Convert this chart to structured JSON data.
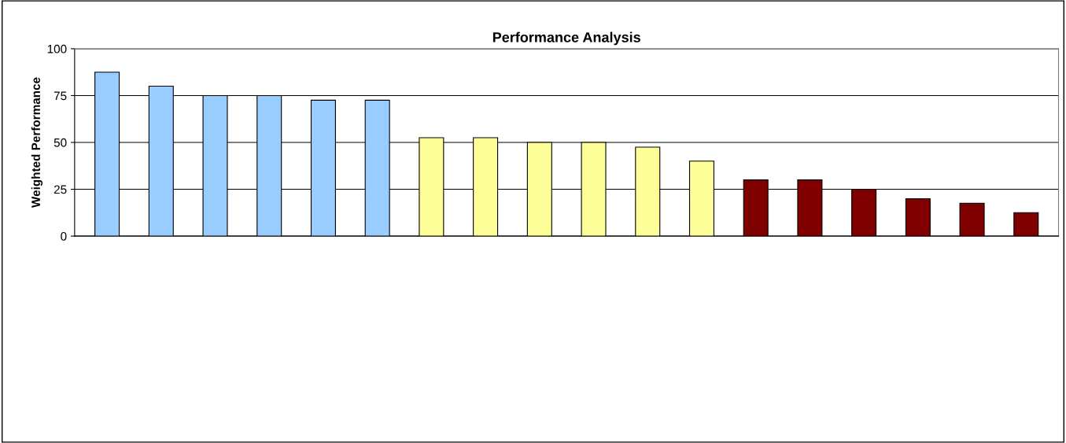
{
  "chart_data": {
    "type": "bar",
    "title": "Performance Analysis",
    "ylabel": "Weighted Performance",
    "categories": [
      null,
      null,
      null,
      null,
      null,
      null,
      null,
      null,
      null,
      null,
      null,
      null,
      null,
      null,
      null,
      null,
      null,
      null
    ],
    "values": [
      87.5,
      80,
      75,
      75,
      72.5,
      72.5,
      52.5,
      52.5,
      50,
      50,
      47.5,
      40,
      30,
      30,
      25,
      20,
      17.5,
      12.5
    ],
    "colors": [
      "#99ccff",
      "#99ccff",
      "#99ccff",
      "#99ccff",
      "#99ccff",
      "#99ccff",
      "#ffff99",
      "#ffff99",
      "#ffff99",
      "#ffff99",
      "#ffff99",
      "#ffff99",
      "#800000",
      "#800000",
      "#800000",
      "#800000",
      "#800000",
      "#800000"
    ],
    "ylim": [
      0,
      100
    ],
    "yticks": [
      0,
      25,
      50,
      75,
      100
    ],
    "grid": "y",
    "legend": false
  }
}
